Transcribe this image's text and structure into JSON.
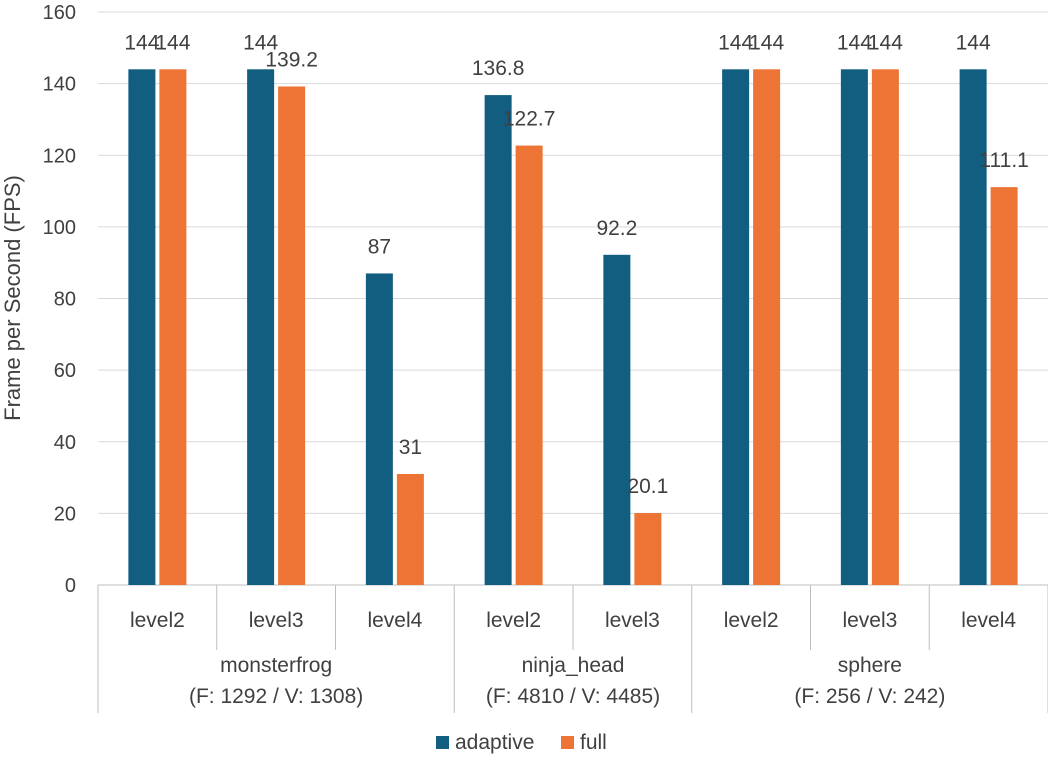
{
  "chart_data": {
    "type": "bar",
    "ylabel": "Frame per Second (FPS)",
    "ylim": [
      0,
      160
    ],
    "yticks": [
      0,
      20,
      40,
      60,
      80,
      100,
      120,
      140,
      160
    ],
    "grid": true,
    "legend_position": "bottom",
    "groups": [
      {
        "name": "monsterfrog",
        "detail": "(F: 1292 / V: 1308)",
        "categories": [
          "level2",
          "level3",
          "level4"
        ]
      },
      {
        "name": "ninja_head",
        "detail": "(F: 4810 / V: 4485)",
        "categories": [
          "level2",
          "level3"
        ]
      },
      {
        "name": "sphere",
        "detail": "(F: 256 / V: 242)",
        "categories": [
          "level2",
          "level3",
          "level4"
        ]
      }
    ],
    "series": [
      {
        "name": "adaptive",
        "color": "#125e80",
        "values": [
          144,
          144,
          87,
          136.8,
          92.2,
          144,
          144,
          144
        ]
      },
      {
        "name": "full",
        "color": "#ed7435",
        "values": [
          144,
          139.2,
          31,
          122.7,
          20.1,
          144,
          144,
          111.1
        ]
      }
    ]
  }
}
